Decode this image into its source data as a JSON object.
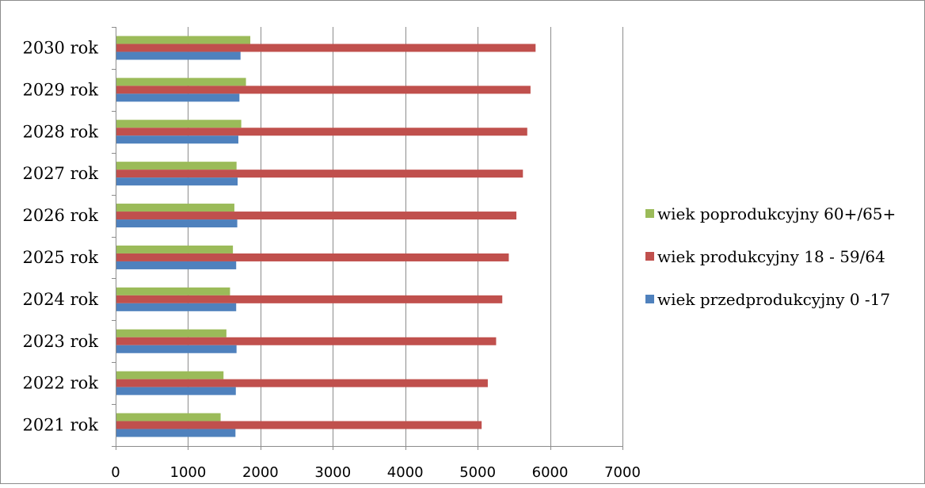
{
  "chart_data": {
    "type": "bar",
    "orientation": "horizontal",
    "categories": [
      "2021 rok",
      "2022 rok",
      "2023 rok",
      "2024 rok",
      "2025 rok",
      "2026 rok",
      "2027 rok",
      "2028 rok",
      "2029 rok",
      "2030 rok"
    ],
    "series": [
      {
        "name": "wiek przedprodukcyjny 0 -17",
        "color": "#4F81BD",
        "values": [
          1655,
          1660,
          1670,
          1665,
          1665,
          1680,
          1685,
          1695,
          1710,
          1725
        ]
      },
      {
        "name": "wiek produkcyjny 18 - 59/64",
        "color": "#C0504D",
        "values": [
          5055,
          5140,
          5255,
          5340,
          5430,
          5535,
          5625,
          5685,
          5730,
          5800
        ]
      },
      {
        "name": "wiek poprodukcyjny 60+/65+",
        "color": "#9BBB59",
        "values": [
          1450,
          1490,
          1530,
          1580,
          1620,
          1640,
          1670,
          1735,
          1800,
          1860
        ]
      }
    ],
    "legend_order": [
      "wiek poprodukcyjny 60+/65+",
      "wiek produkcyjny 18 - 59/64",
      "wiek przedprodukcyjny 0 -17"
    ],
    "x_ticks": [
      "0",
      "1000",
      "2000",
      "3000",
      "4000",
      "5000",
      "6000",
      "7000"
    ],
    "xlim": [
      0,
      7000
    ],
    "grid": true,
    "legend_position": "right"
  }
}
